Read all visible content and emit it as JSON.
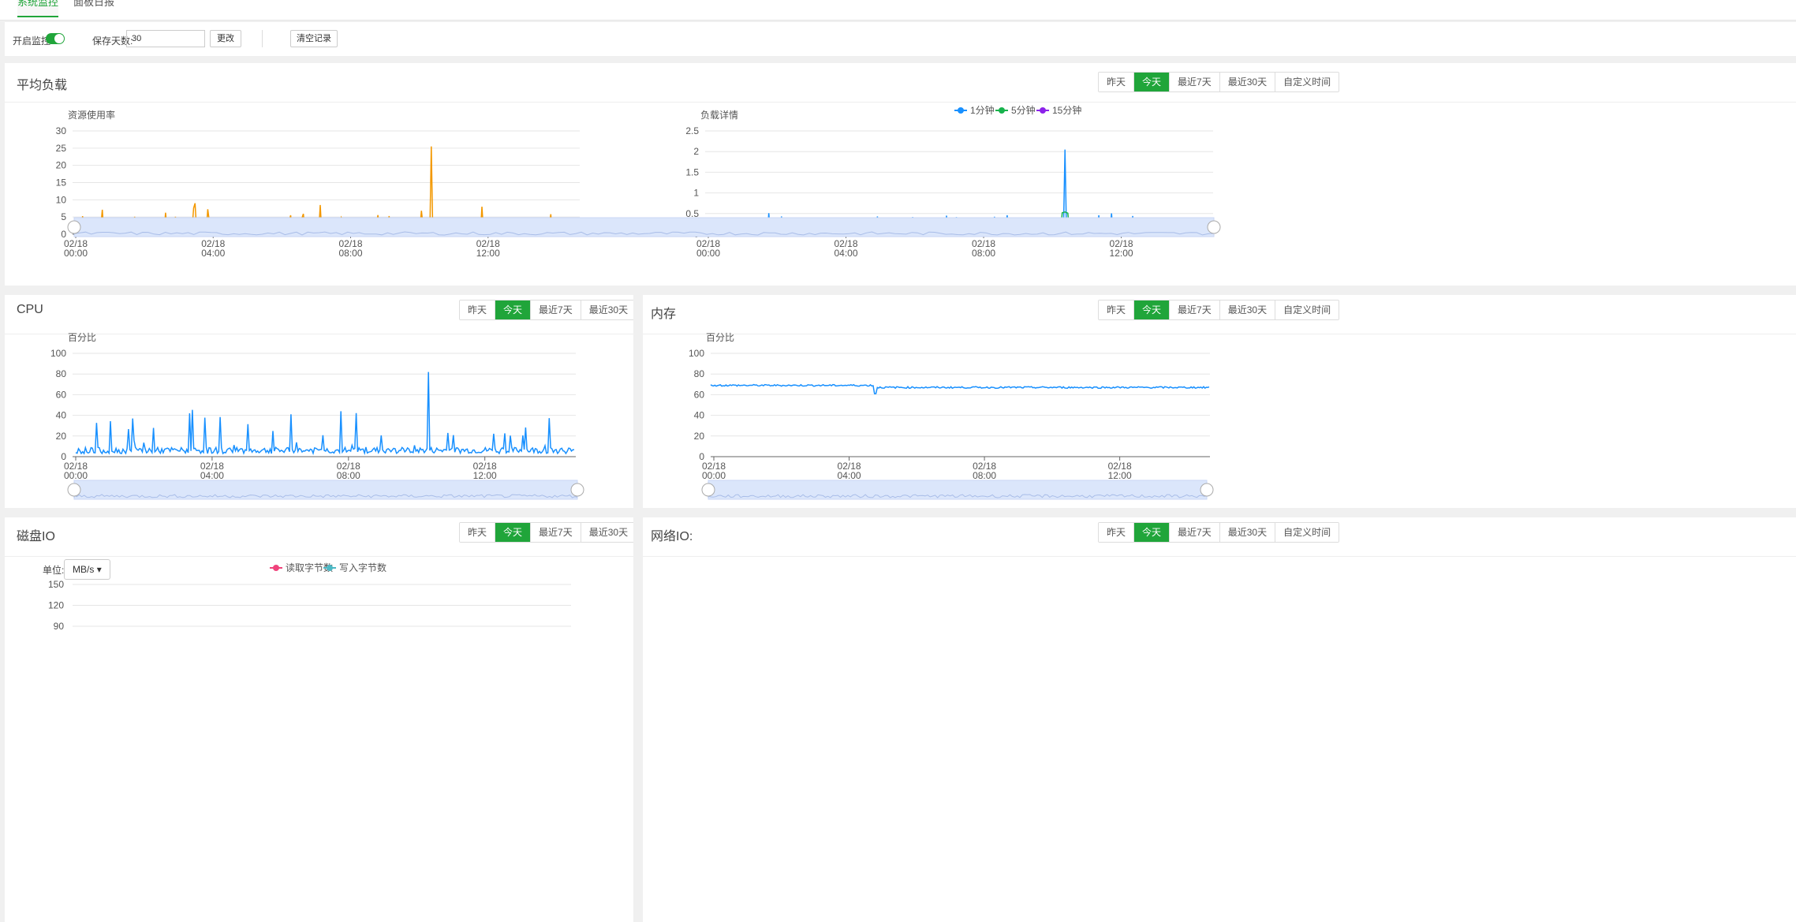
{
  "tabs": [
    {
      "label": "系统监控",
      "active": true
    },
    {
      "label": "面板日报",
      "active": false
    }
  ],
  "toolbar": {
    "monitor_label": "开启监控",
    "monitor_on": true,
    "days_label": "保存天数:",
    "days_value": "30",
    "change_btn": "更改",
    "clear_btn": "清空记录"
  },
  "range_buttons": [
    "昨天",
    "今天",
    "最近7天",
    "最近30天",
    "自定义时间"
  ],
  "range_active": "今天",
  "colors": {
    "accent": "#20a53a",
    "orange": "#f39800",
    "blue": "#1890ff",
    "green": "#17b24c",
    "purple": "#8c22ea"
  },
  "panels": {
    "load": {
      "title": "平均负载"
    },
    "cpu": {
      "title": "CPU"
    },
    "mem": {
      "title": "内存"
    },
    "disk": {
      "title": "磁盘IO",
      "unit_label": "单位:",
      "unit_value": "MB/s"
    },
    "net": {
      "title": "网络IO:"
    }
  },
  "chart_data": [
    {
      "id": "load-usage",
      "type": "line",
      "title": "资源使用率",
      "ylim": [
        0,
        30
      ],
      "yticks": [
        0,
        5,
        10,
        15,
        20,
        25,
        30
      ],
      "x_ticks": [
        "02/18\n00:00",
        "02/18\n04:00",
        "02/18\n08:00",
        "02/18\n12:00"
      ],
      "series": [
        {
          "name": "资源使用率",
          "color": "#f39800",
          "peaks": [
            [
              0.71,
              25.5
            ],
            [
              0.24,
              9
            ],
            [
              0.49,
              8.5
            ],
            [
              0.81,
              8
            ]
          ],
          "base": 2
        }
      ]
    },
    {
      "id": "load-detail",
      "type": "line",
      "title": "负载详情",
      "ylim": [
        0,
        2.5
      ],
      "yticks": [
        0,
        0.5,
        1,
        1.5,
        2,
        2.5
      ],
      "x_ticks": [
        "02/18\n00:00",
        "02/18\n04:00",
        "02/18\n08:00",
        "02/18\n12:00"
      ],
      "legend": [
        "1分钟",
        "5分钟",
        "15分钟"
      ],
      "series": [
        {
          "name": "1分钟",
          "color": "#1890ff"
        },
        {
          "name": "5分钟",
          "color": "#17b24c"
        },
        {
          "name": "15分钟",
          "color": "#8c22ea"
        }
      ],
      "peak": [
        0.71,
        2.05
      ]
    },
    {
      "id": "cpu",
      "type": "line",
      "title": "百分比",
      "ylim": [
        0,
        100
      ],
      "yticks": [
        0,
        20,
        40,
        60,
        80,
        100
      ],
      "x_ticks": [
        "02/18\n00:00",
        "02/18\n04:00",
        "02/18\n08:00",
        "02/18\n12:00"
      ],
      "series": [
        {
          "name": "CPU",
          "color": "#1890ff",
          "peak": [
            0.71,
            82
          ]
        }
      ]
    },
    {
      "id": "mem",
      "type": "line",
      "title": "百分比",
      "ylim": [
        0,
        100
      ],
      "yticks": [
        0,
        20,
        40,
        60,
        80,
        100
      ],
      "x_ticks": [
        "02/18\n00:00",
        "02/18\n04:00",
        "02/18\n08:00",
        "02/18\n12:00"
      ],
      "series": [
        {
          "name": "内存",
          "color": "#1890ff",
          "level_before": 69,
          "level_after": 67,
          "dip": [
            0.33,
            61
          ]
        }
      ]
    },
    {
      "id": "disk",
      "type": "line",
      "title": "",
      "yticks": [
        90,
        120,
        150
      ],
      "legend": [
        "读取字节数",
        "写入字节数"
      ],
      "series": [
        {
          "name": "读取字节数",
          "color": "#f0437c"
        },
        {
          "name": "写入字节数",
          "color": "#4cb8c4"
        }
      ]
    }
  ]
}
